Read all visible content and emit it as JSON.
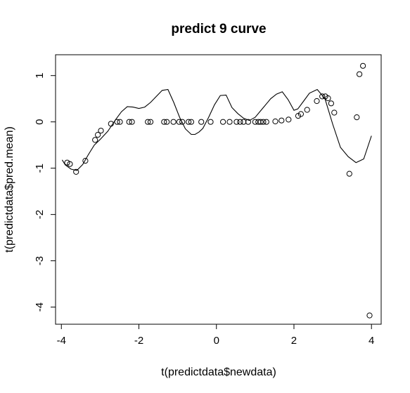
{
  "chart_data": {
    "type": "scatter",
    "title": "predict 9 curve",
    "xlabel": "t(predictdata$newdata)",
    "ylabel": "t(predictdata$pred.mean)",
    "xlim": [
      -4.15,
      4.25
    ],
    "ylim": [
      -4.37,
      1.45
    ],
    "x_ticks": [
      -4,
      -2,
      0,
      2,
      4
    ],
    "x_tick_labels": [
      "-4",
      "-2",
      "0",
      "2",
      "4"
    ],
    "y_ticks": [
      -4,
      -3,
      -2,
      -1,
      0,
      1
    ],
    "y_tick_labels": [
      "-4",
      "-3",
      "-2",
      "-1",
      "0",
      "1"
    ],
    "grid": false,
    "legend": "none",
    "points": {
      "x": [
        -3.85,
        -3.78,
        -3.62,
        -3.38,
        -3.13,
        -3.06,
        -2.98,
        -2.72,
        -2.56,
        -2.49,
        -2.25,
        -2.18,
        -1.77,
        -1.7,
        -1.35,
        -1.28,
        -1.11,
        -0.96,
        -0.88,
        -0.72,
        -0.65,
        -0.39,
        -0.15,
        0.17,
        0.34,
        0.52,
        0.61,
        0.7,
        0.82,
        1.0,
        1.08,
        1.14,
        1.21,
        1.29,
        1.52,
        1.68,
        1.86,
        2.11,
        2.18,
        2.34,
        2.59,
        2.73,
        2.81,
        2.88,
        2.96,
        3.04,
        3.43,
        3.62,
        3.69,
        3.78,
        3.95
      ],
      "y": [
        -0.88,
        -0.91,
        -1.08,
        -0.84,
        -0.39,
        -0.28,
        -0.19,
        -0.04,
        0.0,
        0.0,
        0.0,
        0.0,
        0.0,
        0.0,
        0.0,
        0.0,
        0.0,
        0.0,
        0.0,
        0.0,
        0.0,
        0.0,
        0.0,
        0.0,
        0.0,
        0.0,
        0.0,
        0.0,
        0.0,
        0.0,
        0.0,
        0.0,
        0.0,
        0.0,
        0.01,
        0.03,
        0.05,
        0.13,
        0.17,
        0.26,
        0.45,
        0.55,
        0.55,
        0.51,
        0.4,
        0.2,
        -1.12,
        0.1,
        1.03,
        1.21,
        -4.18
      ]
    },
    "curve": {
      "x": [
        -3.98,
        -3.9,
        -3.75,
        -3.6,
        -3.45,
        -3.3,
        -3.15,
        -3.0,
        -2.8,
        -2.6,
        -2.45,
        -2.3,
        -2.15,
        -2.0,
        -1.85,
        -1.7,
        -1.55,
        -1.4,
        -1.25,
        -1.1,
        -0.95,
        -0.8,
        -0.65,
        -0.55,
        -0.45,
        -0.35,
        -0.2,
        -0.05,
        0.1,
        0.25,
        0.4,
        0.55,
        0.7,
        0.85,
        1.0,
        1.2,
        1.4,
        1.55,
        1.7,
        1.85,
        2.0,
        2.1,
        2.25,
        2.4,
        2.6,
        2.8,
        3.0,
        3.2,
        3.4,
        3.6,
        3.8,
        4.0
      ],
      "y": [
        -0.82,
        -0.93,
        -1.02,
        -1.05,
        -0.92,
        -0.7,
        -0.5,
        -0.38,
        -0.2,
        0.05,
        0.22,
        0.33,
        0.32,
        0.29,
        0.32,
        0.42,
        0.55,
        0.68,
        0.7,
        0.42,
        0.1,
        -0.15,
        -0.27,
        -0.27,
        -0.22,
        -0.14,
        0.1,
        0.37,
        0.57,
        0.58,
        0.31,
        0.18,
        0.08,
        0.03,
        0.1,
        0.3,
        0.5,
        0.6,
        0.65,
        0.48,
        0.25,
        0.28,
        0.45,
        0.62,
        0.7,
        0.5,
        -0.05,
        -0.55,
        -0.75,
        -0.88,
        -0.8,
        -0.3
      ]
    }
  }
}
